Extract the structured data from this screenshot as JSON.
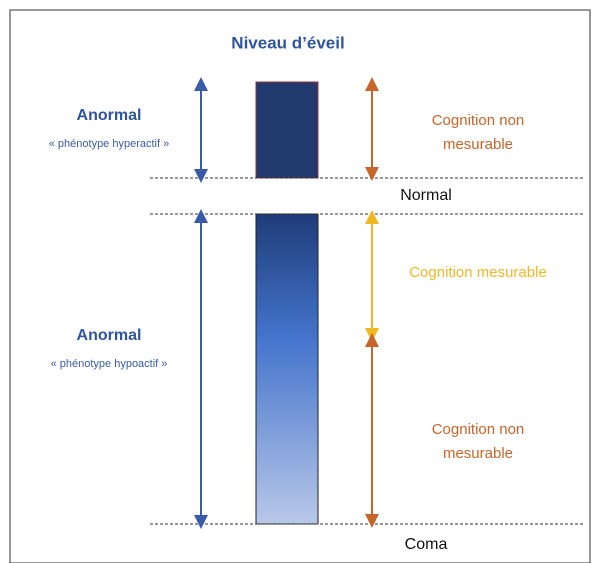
{
  "title": "Niveau d’éveil",
  "left": [
    {
      "heading": "Anormal",
      "subtitle": "« phénotype hyperactif »"
    },
    {
      "heading": "Anormal",
      "subtitle": "« phénotype hypoactif »"
    }
  ],
  "right": [
    {
      "label": "Cognition non\nmesurable"
    },
    {
      "label": "Cognition mesurable"
    },
    {
      "label": "Cognition non\nmesurable"
    }
  ],
  "levels": [
    "Normal",
    "Coma"
  ]
}
